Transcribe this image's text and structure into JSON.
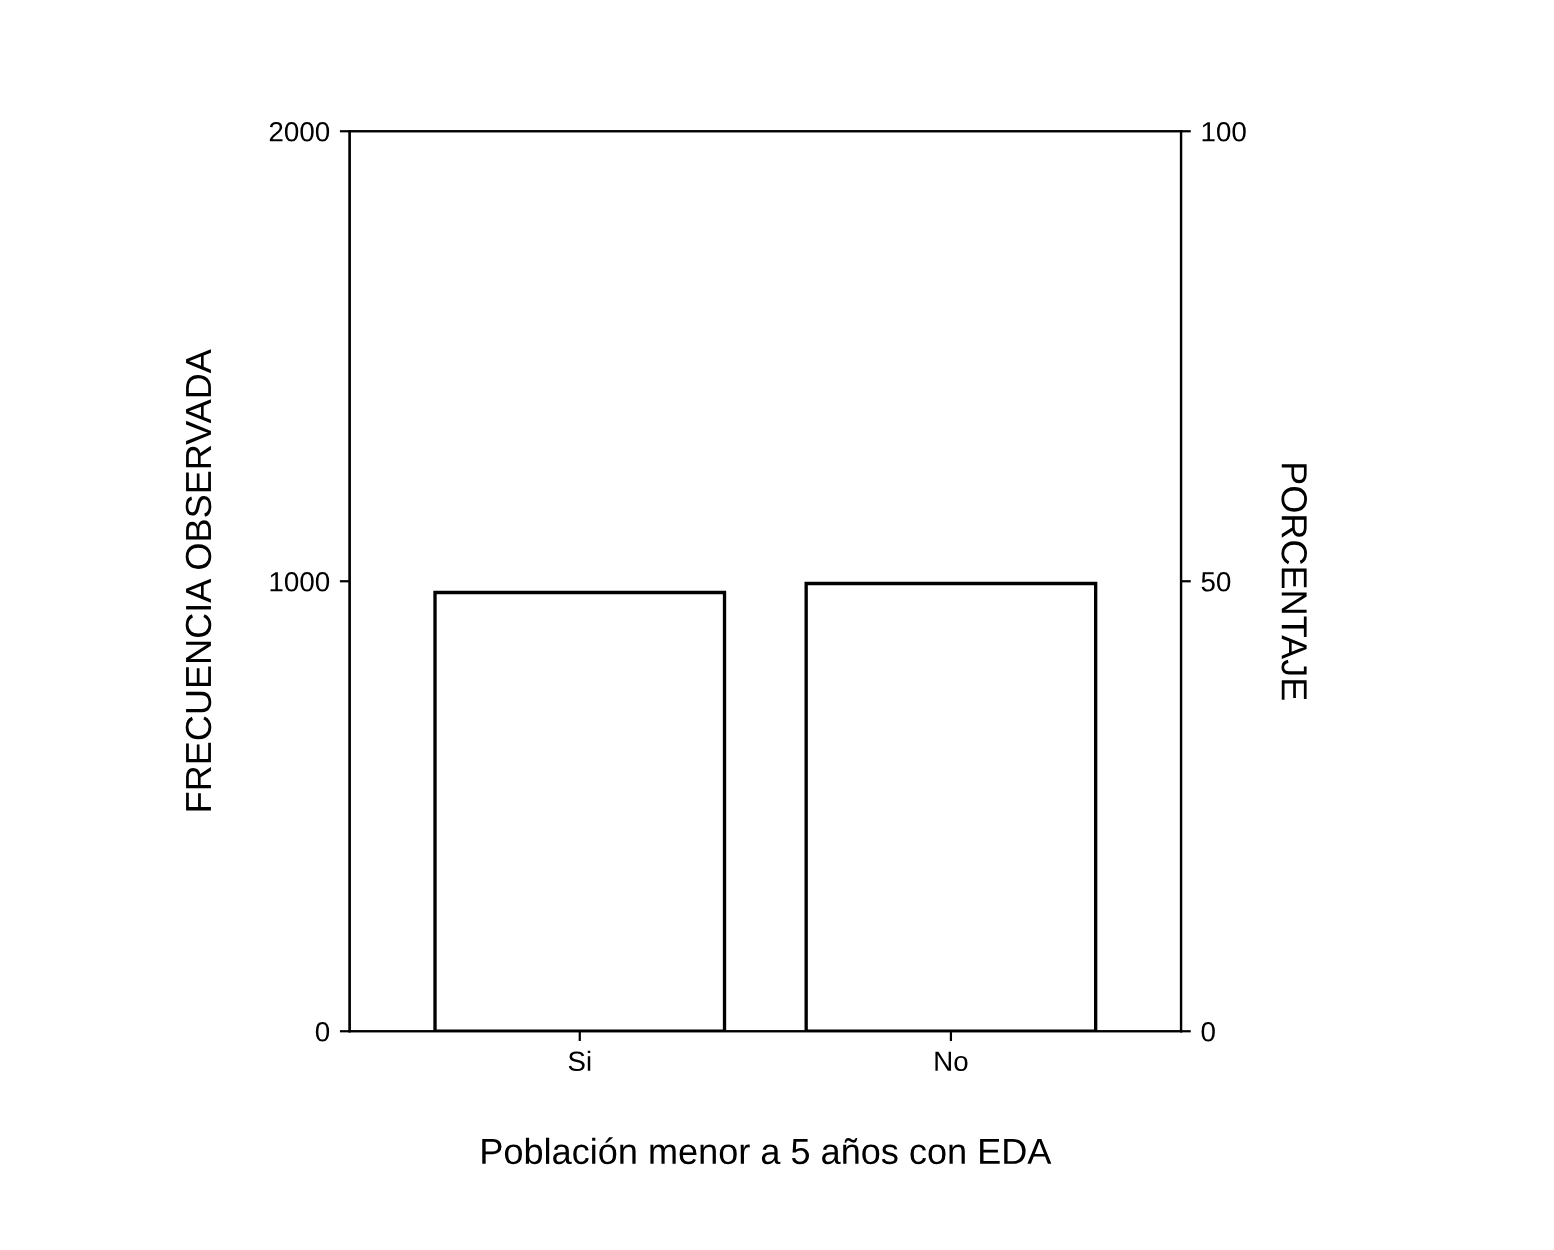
{
  "chart_data": {
    "type": "bar",
    "xlabel": "Población menor a 5 años con EDA",
    "ylabel": "FRECUENCIA OBSERVADA",
    "y2label": "PORCENTAJE",
    "categories": [
      "Si",
      "No"
    ],
    "series": [
      {
        "color": "#ffffff",
        "values": [
          975,
          995
        ]
      }
    ],
    "ylim": [
      0,
      2000
    ],
    "yticks": [
      0,
      1000,
      2000
    ],
    "y2lim": [
      0,
      100
    ],
    "y2ticks": [
      0,
      50,
      100
    ],
    "grid": false,
    "legend": false
  }
}
